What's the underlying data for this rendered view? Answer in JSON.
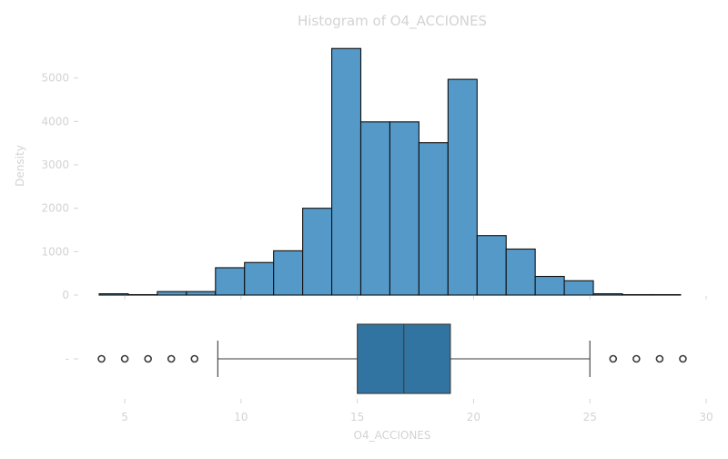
{
  "chart_data": {
    "type": "bar",
    "title": "Histogram of O4_ACCIONES",
    "xlabel": "O4_ACCIONES",
    "ylabel": "Density",
    "xlim": [
      3,
      30
    ],
    "ylim": [
      0,
      6000
    ],
    "x_ticks": [
      5,
      10,
      15,
      20,
      25,
      30
    ],
    "y_ticks": [
      0,
      1000,
      2000,
      3000,
      4000,
      5000
    ],
    "histogram": {
      "bin_edges": [
        3.9,
        5.15,
        6.4,
        7.65,
        8.9,
        10.15,
        11.4,
        12.65,
        13.9,
        15.15,
        16.4,
        17.65,
        18.9,
        20.15,
        21.4,
        22.65,
        23.9,
        25.15,
        26.4,
        27.65,
        28.9
      ],
      "values": [
        30,
        10,
        80,
        80,
        630,
        750,
        1020,
        2000,
        5680,
        3990,
        3990,
        3510,
        4970,
        1370,
        1060,
        430,
        330,
        30,
        10,
        10
      ]
    },
    "boxplot": {
      "y_tick_label": "-",
      "whisker_low": 9,
      "q1": 15,
      "median": 17,
      "q3": 19,
      "whisker_high": 25,
      "fliers": [
        4,
        5,
        6,
        7,
        8,
        26,
        27,
        28,
        29
      ]
    },
    "grid": false,
    "legend": "none"
  }
}
